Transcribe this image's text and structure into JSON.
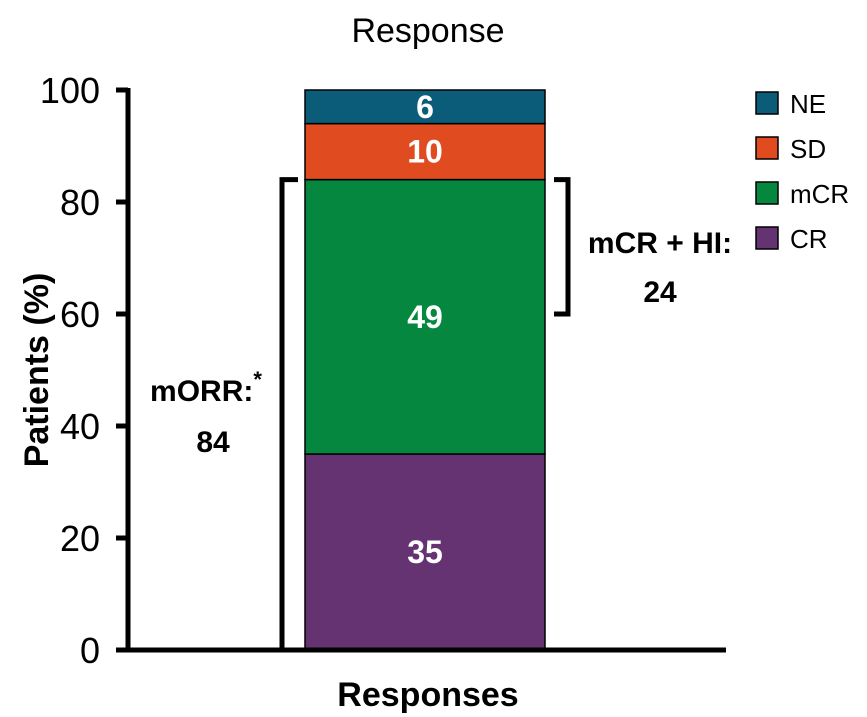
{
  "chart_data": {
    "type": "bar",
    "stacked": true,
    "title": "Response",
    "xlabel": "Responses",
    "ylabel": "Patients (%)",
    "ylim": [
      0,
      100
    ],
    "yticks": [
      0,
      20,
      40,
      60,
      80,
      100
    ],
    "categories": [
      ""
    ],
    "series": [
      {
        "name": "CR",
        "values": [
          35
        ],
        "color": "#663372"
      },
      {
        "name": "mCR",
        "values": [
          49
        ],
        "color": "#06873f"
      },
      {
        "name": "SD",
        "values": [
          10
        ],
        "color": "#e04b20"
      },
      {
        "name": "NE",
        "values": [
          6
        ],
        "color": "#0a5c79"
      }
    ],
    "legend": {
      "placement": "top-right",
      "order": [
        "NE",
        "SD",
        "mCR",
        "CR"
      ]
    },
    "annotations": [
      {
        "id": "morr",
        "label": "mORR:",
        "superscript": "*",
        "value": "84",
        "from": 0,
        "to": 84,
        "side": "left"
      },
      {
        "id": "mcr-hi",
        "label": "mCR + HI:",
        "value": "24",
        "from": 60,
        "to": 84,
        "side": "right"
      }
    ]
  }
}
